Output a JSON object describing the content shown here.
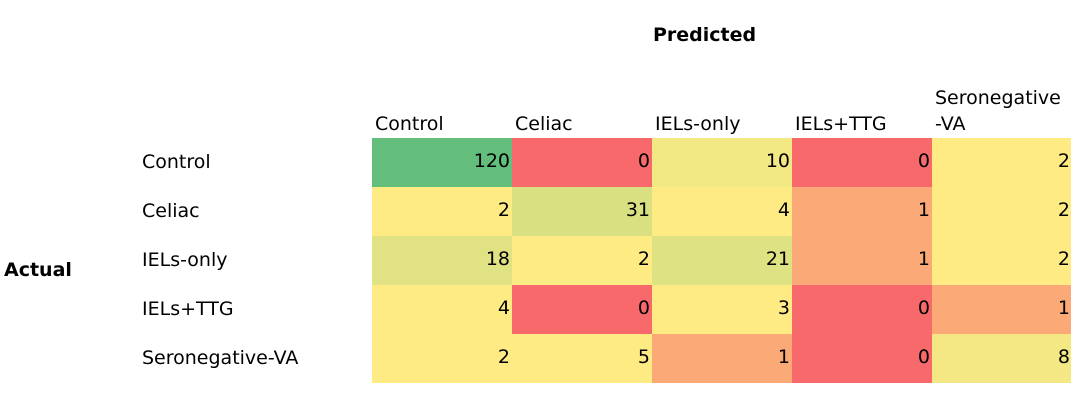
{
  "title": "Predicted",
  "row_title": "Actual",
  "columns": [
    "Control",
    "Celiac",
    "IELs-only",
    "IELs+TTG",
    "Seronegative\n-VA"
  ],
  "rows": [
    {
      "label": "Control",
      "values": [
        120,
        0,
        10,
        0,
        2
      ],
      "colors": [
        "#63be7b",
        "#f8696b",
        "#f2e884",
        "#f8696b",
        "#ffeb84"
      ]
    },
    {
      "label": "Celiac",
      "values": [
        2,
        31,
        4,
        1,
        2
      ],
      "colors": [
        "#ffeb84",
        "#d8e082",
        "#ffeb84",
        "#fbaa77",
        "#ffeb84"
      ]
    },
    {
      "label": "IELs-only",
      "values": [
        18,
        2,
        21,
        1,
        2
      ],
      "colors": [
        "#e0e283",
        "#ffeb84",
        "#dfe283",
        "#fbaa77",
        "#ffeb84"
      ]
    },
    {
      "label": "IELs+TTG",
      "values": [
        4,
        0,
        3,
        0,
        1
      ],
      "colors": [
        "#ffeb84",
        "#f8696b",
        "#ffeb84",
        "#f8696b",
        "#fbaa77"
      ]
    },
    {
      "label": "Seronegative-VA",
      "values": [
        2,
        5,
        1,
        0,
        8
      ],
      "colors": [
        "#ffeb84",
        "#ffeb84",
        "#fbaa77",
        "#f8696b",
        "#f3e884"
      ]
    }
  ]
}
